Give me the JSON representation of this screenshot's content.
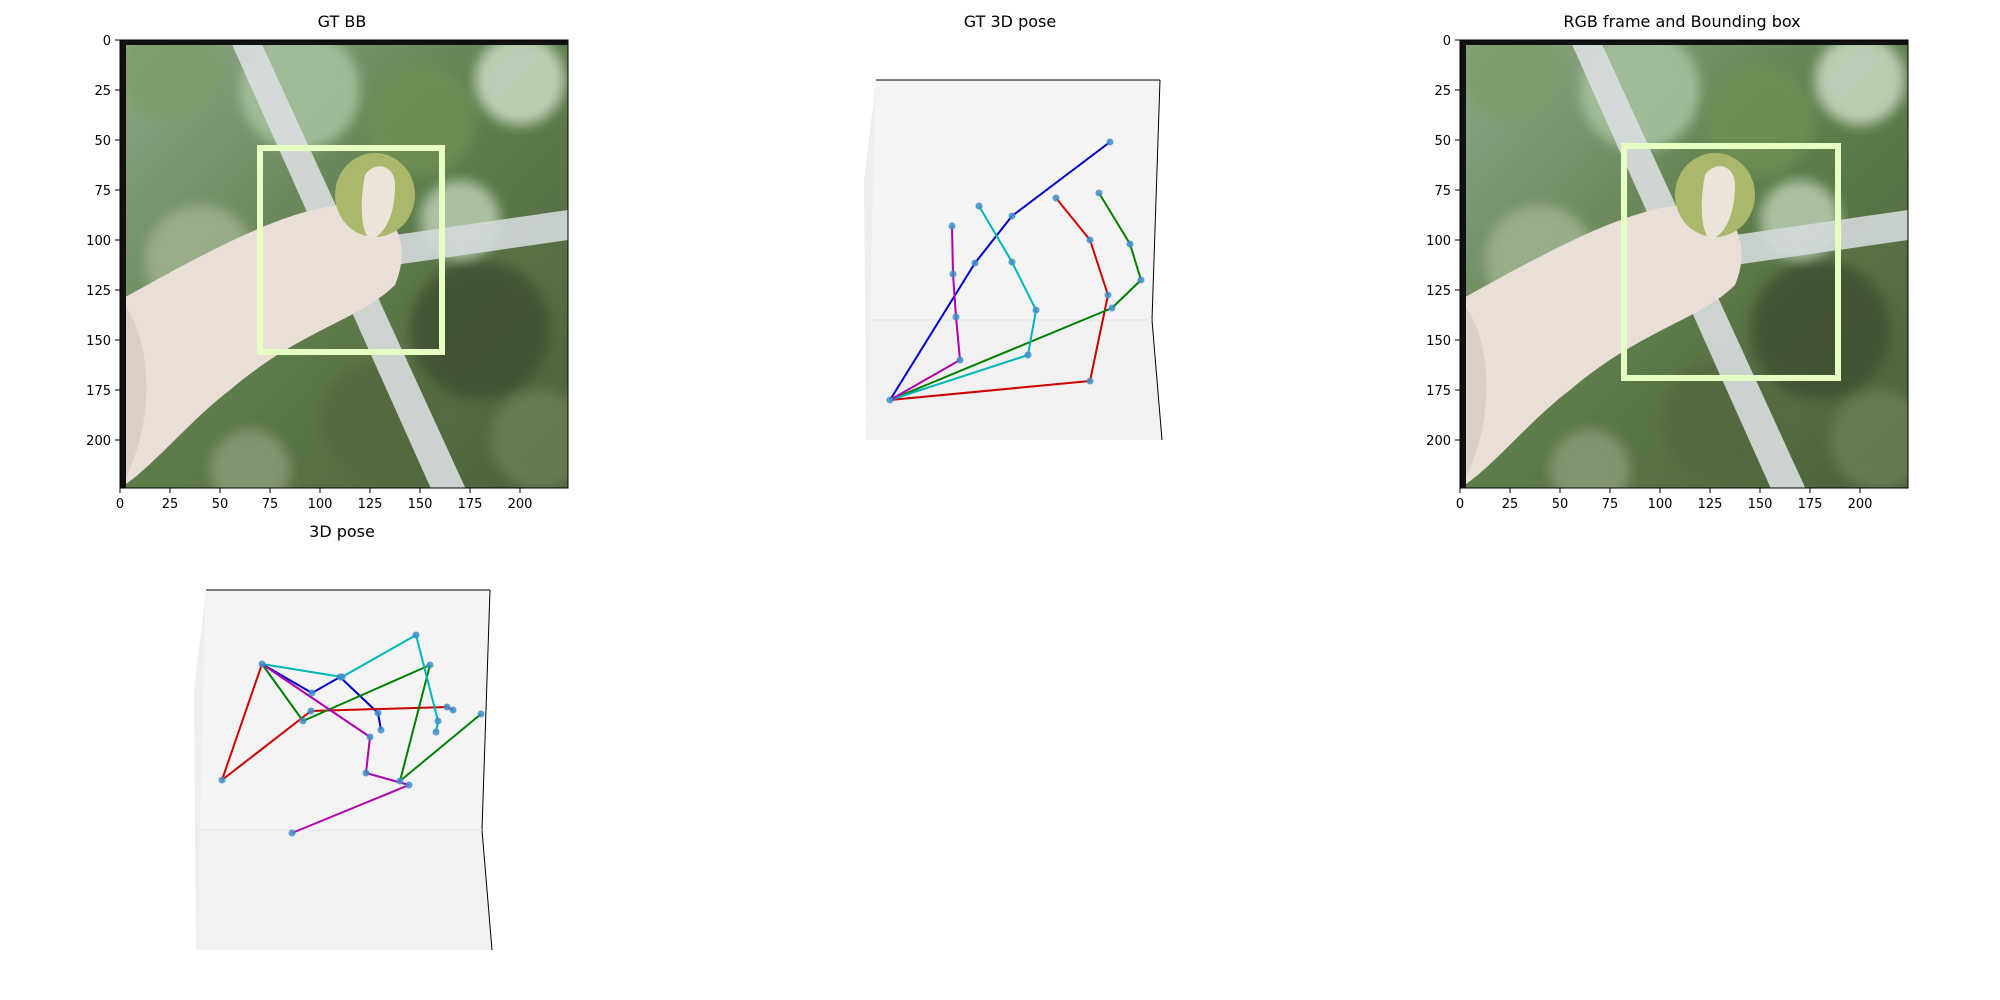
{
  "chart_data": [
    {
      "type": "image",
      "title": "GT BB",
      "xlim": [
        0,
        224
      ],
      "ylim": [
        224,
        0
      ],
      "x_ticks": [
        "0",
        "25",
        "50",
        "75",
        "100",
        "125",
        "150",
        "175",
        "200"
      ],
      "y_ticks": [
        "0",
        "25",
        "50",
        "75",
        "100",
        "125",
        "150",
        "175",
        "200"
      ],
      "bounding_box": {
        "x_min": 70,
        "y_min": 54,
        "x_max": 161,
        "y_max": 156,
        "color": "#e6ffc2"
      }
    },
    {
      "type": "3d-skeleton",
      "title": "GT 3D pose",
      "colors": {
        "wrist": "#1f77b4",
        "thumb": "#0000cc",
        "index": "#cc0000",
        "middle": "#008000",
        "ring": "#00b5b5",
        "pinky": "#b000b0"
      }
    },
    {
      "type": "image",
      "title": "RGB frame and Bounding box",
      "xlim": [
        0,
        224
      ],
      "ylim": [
        224,
        0
      ],
      "x_ticks": [
        "0",
        "25",
        "50",
        "75",
        "100",
        "125",
        "150",
        "175",
        "200"
      ],
      "y_ticks": [
        "0",
        "25",
        "50",
        "75",
        "100",
        "125",
        "150",
        "175",
        "200"
      ],
      "bounding_box": {
        "x_min": 82,
        "y_min": 53,
        "x_max": 189,
        "y_max": 169,
        "color": "#e6ffc2"
      }
    },
    {
      "type": "3d-skeleton",
      "title": "3D pose",
      "colors": {
        "wrist": "#1f77b4",
        "thumb": "#0000cc",
        "index": "#cc0000",
        "middle": "#008000",
        "ring": "#00b5b5",
        "pinky": "#b000b0"
      }
    }
  ]
}
